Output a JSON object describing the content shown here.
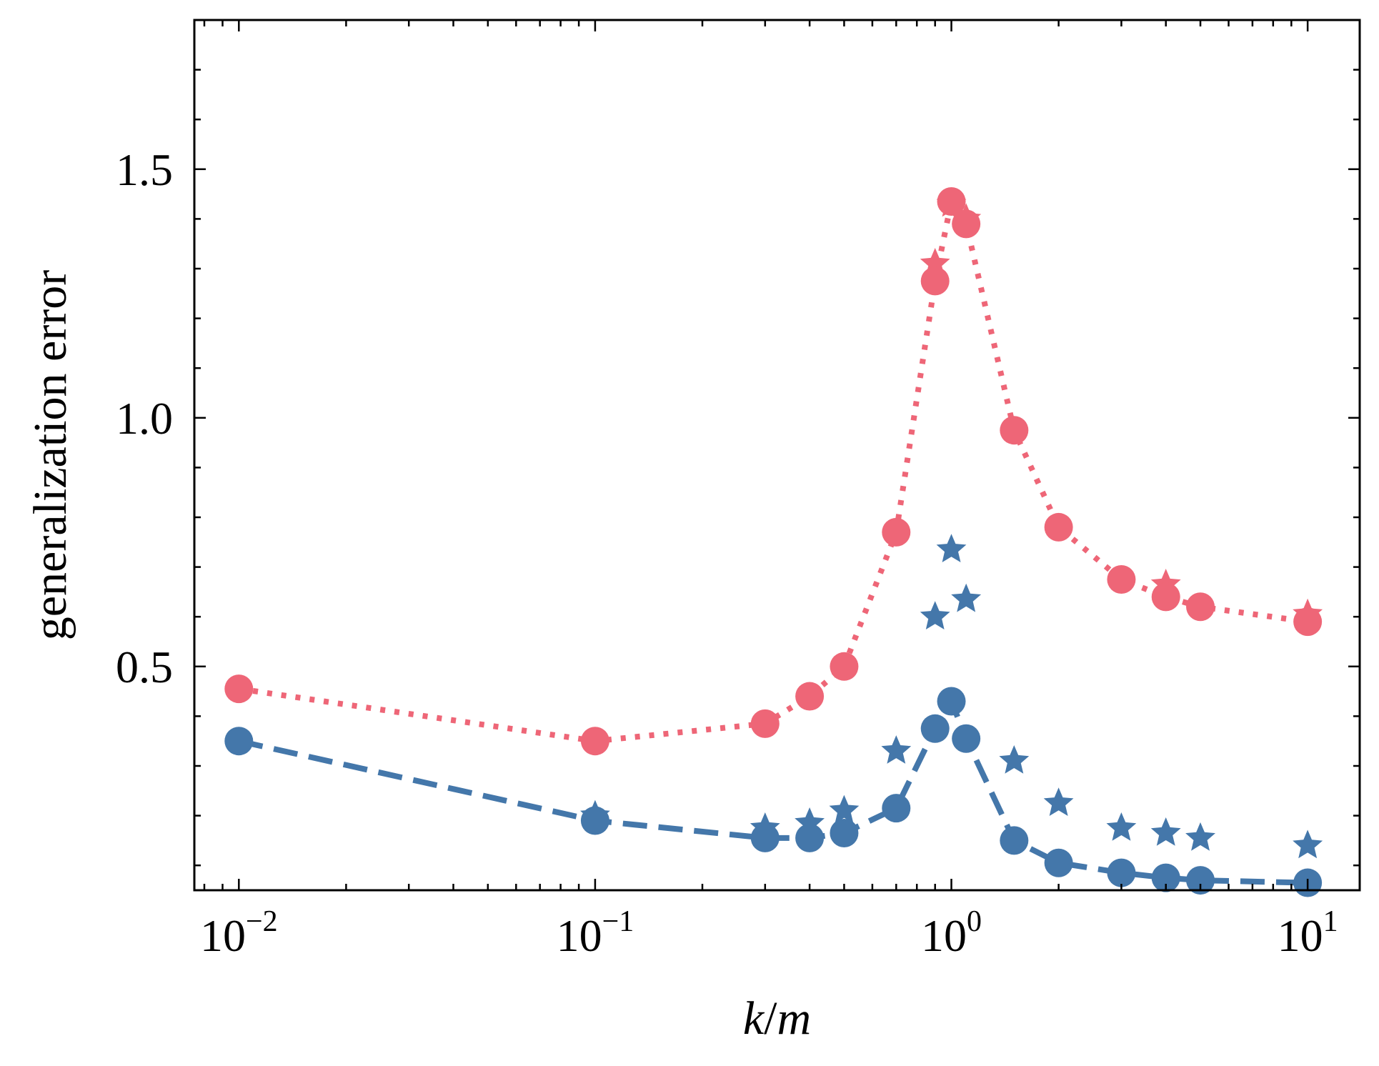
{
  "chart_data": {
    "type": "line",
    "title": "",
    "xlabel_var1": "k",
    "xlabel_sep": "/",
    "xlabel_var2": "m",
    "ylabel": "generalization error",
    "xscale": "log",
    "xlim": [
      0.0075,
      14
    ],
    "ylim": [
      0.05,
      1.8
    ],
    "x_ticks": [
      {
        "value": 0.01,
        "base": "10",
        "exp": "−2"
      },
      {
        "value": 0.1,
        "base": "10",
        "exp": "−1"
      },
      {
        "value": 1,
        "base": "10",
        "exp": "0"
      },
      {
        "value": 10,
        "base": "10",
        "exp": "1"
      }
    ],
    "y_ticks": [
      {
        "value": 0.5,
        "label": "0.5"
      },
      {
        "value": 1.0,
        "label": "1.0"
      },
      {
        "value": 1.5,
        "label": "1.5"
      }
    ],
    "y_minor_step": 0.1,
    "series": [
      {
        "name": "red circles (dotted)",
        "color": "#ee6677",
        "marker": "circle",
        "linestyle": "dotted",
        "x": [
          0.01,
          0.1,
          0.3,
          0.4,
          0.5,
          0.7,
          0.9,
          1.0,
          1.1,
          1.5,
          2.0,
          3.0,
          4.0,
          5.0,
          10.0
        ],
        "y": [
          0.455,
          0.35,
          0.385,
          0.44,
          0.5,
          0.77,
          1.275,
          1.435,
          1.39,
          0.975,
          0.78,
          0.675,
          0.64,
          0.62,
          0.59
        ]
      },
      {
        "name": "red stars",
        "color": "#ee6677",
        "marker": "star",
        "linestyle": "none",
        "x": [
          0.9,
          1.0,
          1.1,
          4.0,
          10.0
        ],
        "y": [
          1.31,
          1.43,
          1.4,
          0.665,
          0.605
        ]
      },
      {
        "name": "blue circles (dashed)",
        "color": "#4477aa",
        "marker": "circle",
        "linestyle": "dashed",
        "x": [
          0.01,
          0.1,
          0.3,
          0.4,
          0.5,
          0.7,
          0.9,
          1.0,
          1.1,
          1.5,
          2.0,
          3.0,
          4.0,
          5.0,
          10.0
        ],
        "y": [
          0.35,
          0.19,
          0.155,
          0.155,
          0.165,
          0.215,
          0.375,
          0.43,
          0.355,
          0.15,
          0.105,
          0.085,
          0.075,
          0.07,
          0.065
        ]
      },
      {
        "name": "blue stars",
        "color": "#4477aa",
        "marker": "star",
        "linestyle": "none",
        "x": [
          0.1,
          0.3,
          0.4,
          0.5,
          0.7,
          0.9,
          1.0,
          1.1,
          1.5,
          2.0,
          3.0,
          4.0,
          5.0,
          10.0
        ],
        "y": [
          0.2,
          0.175,
          0.185,
          0.21,
          0.33,
          0.6,
          0.735,
          0.635,
          0.31,
          0.225,
          0.175,
          0.165,
          0.155,
          0.14
        ]
      }
    ]
  }
}
